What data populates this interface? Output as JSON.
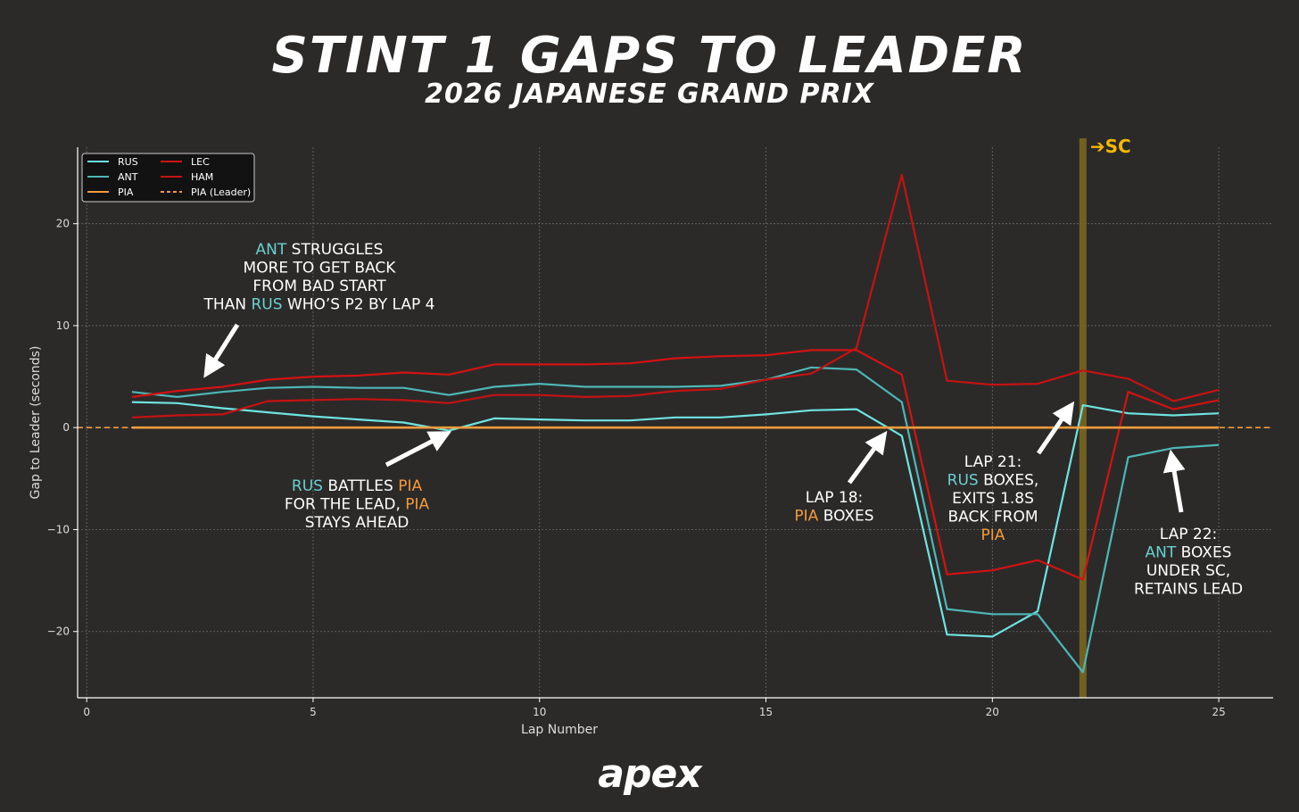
{
  "title": "STINT 1 GAPS TO LEADER",
  "subtitle": "2026 JAPANESE GRAND PRIX",
  "logo": "apex",
  "chart_data": {
    "type": "line",
    "xlabel": "Lap Number",
    "ylabel": "Gap to Leader (seconds)",
    "xlim": [
      -0.2,
      26.2
    ],
    "ylim": [
      -26.5,
      27.5
    ],
    "x_ticks": [
      0,
      5,
      10,
      15,
      20,
      25
    ],
    "y_ticks": [
      20,
      10,
      0,
      -10,
      -20
    ],
    "grid": true,
    "legend_position": "top-left",
    "colors": {
      "rus": "#6fe3e1",
      "ant": "#4fb6b6",
      "pia": "#f49b3c",
      "lec": "#d31212",
      "ham": "#c61212",
      "sc": "#7a6620",
      "sc_text": "#f5b800"
    },
    "x": [
      1,
      2,
      3,
      4,
      5,
      6,
      7,
      8,
      9,
      10,
      11,
      12,
      13,
      14,
      15,
      16,
      17,
      18,
      19,
      20,
      21,
      22,
      23,
      24,
      25
    ],
    "series": [
      {
        "name": "RUS",
        "key": "rus",
        "style": "solid",
        "values": [
          2.5,
          2.4,
          1.9,
          1.5,
          1.1,
          0.8,
          0.5,
          -0.3,
          0.9,
          0.8,
          0.7,
          0.7,
          1.0,
          1.0,
          1.3,
          1.7,
          1.8,
          -0.8,
          -20.3,
          -20.5,
          -18.0,
          2.2,
          1.4,
          1.2,
          1.4
        ]
      },
      {
        "name": "ANT",
        "key": "ant",
        "style": "solid",
        "values": [
          3.5,
          3.0,
          3.5,
          3.9,
          4.0,
          3.9,
          3.9,
          3.2,
          4.0,
          4.3,
          4.0,
          4.0,
          4.0,
          4.1,
          4.7,
          5.9,
          5.7,
          2.5,
          -17.8,
          -18.3,
          -18.3,
          -24.0,
          -2.9,
          -2.0,
          -1.7
        ]
      },
      {
        "name": "PIA",
        "key": "pia",
        "style": "solid",
        "values": [
          0,
          0,
          0,
          0,
          0,
          0,
          0,
          0,
          0,
          0,
          0,
          0,
          0,
          0,
          0,
          0,
          0,
          0,
          0,
          0,
          0,
          0,
          0,
          0,
          0
        ]
      },
      {
        "name": "LEC",
        "key": "lec",
        "style": "solid",
        "values": [
          3.0,
          3.6,
          4.0,
          4.7,
          5.0,
          5.1,
          5.4,
          5.2,
          6.2,
          6.2,
          6.2,
          6.3,
          6.8,
          7.0,
          7.1,
          7.6,
          7.6,
          5.2,
          -14.4,
          -14.0,
          -13.0,
          -14.9,
          3.5,
          1.8,
          2.7
        ]
      },
      {
        "name": "HAM",
        "key": "ham",
        "style": "solid",
        "values": [
          1.0,
          1.2,
          1.3,
          2.6,
          2.7,
          2.8,
          2.7,
          2.4,
          3.2,
          3.2,
          3.0,
          3.1,
          3.6,
          3.8,
          4.7,
          5.3,
          7.8,
          24.8,
          4.6,
          4.2,
          4.3,
          5.6,
          4.8,
          2.6,
          3.7
        ]
      },
      {
        "name": "PIA (Leader)",
        "key": "pia",
        "style": "dashed",
        "reference_y": 0
      }
    ],
    "safety_car": {
      "lap": 22,
      "label": "➔SC"
    },
    "annotations": [
      {
        "id": "ant-struggles",
        "lines": [
          [
            {
              "t": "ANT",
              "c": "ant"
            },
            {
              "t": " STRUGGLES",
              "c": "white"
            }
          ],
          [
            {
              "t": "MORE TO GET BACK",
              "c": "white"
            }
          ],
          [
            {
              "t": "FROM BAD START",
              "c": "white"
            }
          ],
          [
            {
              "t": "THAN ",
              "c": "white"
            },
            {
              "t": "RUS",
              "c": "ant"
            },
            {
              "t": " WHO’S P2 BY LAP 4",
              "c": "white"
            }
          ]
        ]
      },
      {
        "id": "rus-battles",
        "lines": [
          [
            {
              "t": "RUS",
              "c": "ant"
            },
            {
              "t": " BATTLES ",
              "c": "white"
            },
            {
              "t": "PIA",
              "c": "pia"
            }
          ],
          [
            {
              "t": "FOR THE LEAD, ",
              "c": "white"
            },
            {
              "t": "PIA",
              "c": "pia"
            }
          ],
          [
            {
              "t": "STAYS AHEAD",
              "c": "white"
            }
          ]
        ]
      },
      {
        "id": "lap18",
        "lines": [
          [
            {
              "t": "LAP 18:",
              "c": "white"
            }
          ],
          [
            {
              "t": "PIA",
              "c": "pia"
            },
            {
              "t": " BOXES",
              "c": "white"
            }
          ]
        ]
      },
      {
        "id": "lap21",
        "lines": [
          [
            {
              "t": "LAP 21:",
              "c": "white"
            }
          ],
          [
            {
              "t": "RUS",
              "c": "ant"
            },
            {
              "t": " BOXES,",
              "c": "white"
            }
          ],
          [
            {
              "t": "EXITS 1.8S",
              "c": "white"
            }
          ],
          [
            {
              "t": "BACK FROM",
              "c": "white"
            }
          ],
          [
            {
              "t": "PIA",
              "c": "pia"
            }
          ]
        ]
      },
      {
        "id": "lap22",
        "lines": [
          [
            {
              "t": "LAP 22:",
              "c": "white"
            }
          ],
          [
            {
              "t": "ANT",
              "c": "ant"
            },
            {
              "t": " BOXES",
              "c": "white"
            }
          ],
          [
            {
              "t": "UNDER SC,",
              "c": "white"
            }
          ],
          [
            {
              "t": "RETAINS LEAD",
              "c": "white"
            }
          ]
        ]
      }
    ]
  }
}
